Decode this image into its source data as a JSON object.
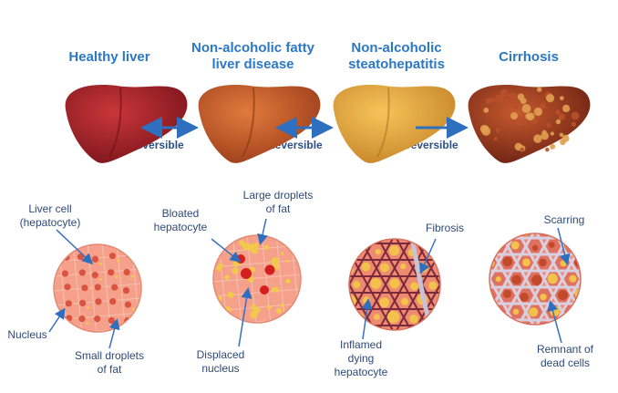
{
  "stages": [
    {
      "title_line1": "Healthy liver",
      "title_line2": "",
      "color": "#a8222a"
    },
    {
      "title_line1": "Non-alcoholic fatty",
      "title_line2": "liver disease",
      "color": "#c45a2a"
    },
    {
      "title_line1": "Non-alcoholic",
      "title_line2": "steatohepatitis",
      "color": "#e8a63a"
    },
    {
      "title_line1": "Cirrhosis",
      "title_line2": "",
      "color": "#9a3a22"
    }
  ],
  "transitions": [
    {
      "label": "Reversible",
      "direction": "both"
    },
    {
      "label": "Reversible",
      "direction": "both"
    },
    {
      "label": "Irreversible",
      "direction": "forward"
    }
  ],
  "labels": {
    "liver_cell_1": "Liver cell",
    "liver_cell_2": "(hepatocyte)",
    "nucleus": "Nucleus",
    "small_droplets_1": "Small droplets",
    "small_droplets_2": "of fat",
    "bloated_1": "Bloated",
    "bloated_2": "hepatocyte",
    "large_droplets_1": "Large droplets",
    "large_droplets_2": "of fat",
    "displaced_1": "Displaced",
    "displaced_2": "nucleus",
    "fibrosis": "Fibrosis",
    "inflamed_1": "Inflamed",
    "inflamed_2": "dying",
    "inflamed_3": "hepatocyte",
    "scarring": "Scarring",
    "remnant_1": "Remnant of",
    "remnant_2": "dead cells"
  },
  "colors": {
    "title": "#2b78c5",
    "arrow": "#2f6fbf",
    "label_text": "#2e4a78",
    "cell_pink": "#f5a08a",
    "fat_yellow": "#f2c94c",
    "nucleus_red": "#d43d2e"
  }
}
